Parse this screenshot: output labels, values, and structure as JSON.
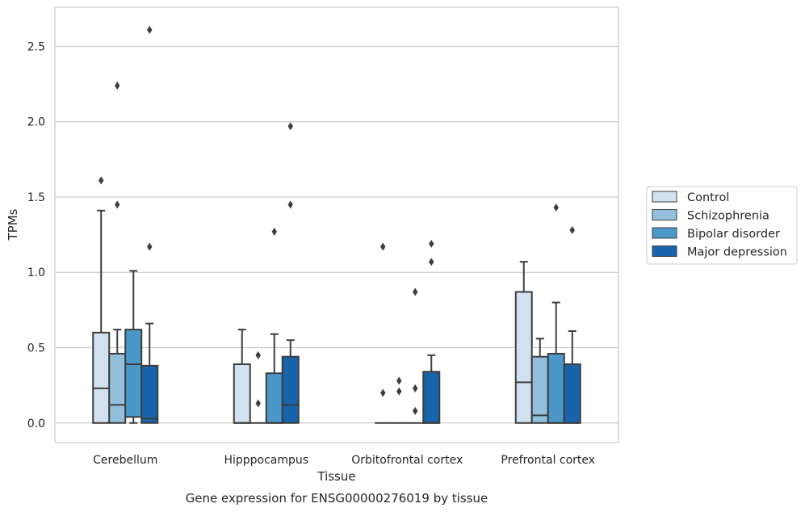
{
  "caption": "Gene expression for ENSG00000276019 by tissue",
  "chart_data": {
    "type": "box",
    "title": "",
    "xlabel": "Tissue",
    "ylabel": "TPMs",
    "ylim": [
      -0.13,
      2.76
    ],
    "yticks": [
      0.0,
      0.5,
      1.0,
      1.5,
      2.0,
      2.5
    ],
    "ytick_labels": [
      "0.0",
      "0.5",
      "1.0",
      "1.5",
      "2.0",
      "2.5"
    ],
    "grid": "horizontal",
    "legend_position": "right",
    "categories": [
      "Cerebellum",
      "Hipppocampus",
      "Orbitofrontal cortex",
      "Prefrontal cortex"
    ],
    "series": [
      {
        "name": "Control",
        "color": "#d1e1ef",
        "boxes": [
          {
            "q1": 0.0,
            "median": 0.23,
            "q3": 0.6,
            "whisker_low": 0.0,
            "whisker_high": 1.41,
            "outliers": [
              1.61
            ]
          },
          {
            "q1": 0.0,
            "median": 0.0,
            "q3": 0.39,
            "whisker_low": 0.0,
            "whisker_high": 0.62,
            "outliers": []
          },
          {
            "q1": 0.0,
            "median": 0.0,
            "q3": 0.0,
            "whisker_low": 0.0,
            "whisker_high": 0.0,
            "outliers": [
              0.2,
              1.17
            ]
          },
          {
            "q1": 0.0,
            "median": 0.27,
            "q3": 0.87,
            "whisker_low": 0.0,
            "whisker_high": 1.07,
            "outliers": []
          }
        ]
      },
      {
        "name": "Schizophrenia",
        "color": "#92bfdb",
        "boxes": [
          {
            "q1": 0.0,
            "median": 0.12,
            "q3": 0.46,
            "whisker_low": 0.0,
            "whisker_high": 0.62,
            "outliers": [
              1.45,
              2.24
            ]
          },
          {
            "q1": 0.0,
            "median": 0.0,
            "q3": 0.0,
            "whisker_low": 0.0,
            "whisker_high": 0.0,
            "outliers": [
              0.13,
              0.45
            ]
          },
          {
            "q1": 0.0,
            "median": 0.0,
            "q3": 0.0,
            "whisker_low": 0.0,
            "whisker_high": 0.0,
            "outliers": [
              0.21,
              0.28
            ]
          },
          {
            "q1": 0.0,
            "median": 0.05,
            "q3": 0.44,
            "whisker_low": 0.0,
            "whisker_high": 0.56,
            "outliers": []
          }
        ]
      },
      {
        "name": "Bipolar disorder",
        "color": "#4a98c9",
        "boxes": [
          {
            "q1": 0.04,
            "median": 0.39,
            "q3": 0.62,
            "whisker_low": 0.0,
            "whisker_high": 1.01,
            "outliers": []
          },
          {
            "q1": 0.0,
            "median": 0.0,
            "q3": 0.33,
            "whisker_low": 0.0,
            "whisker_high": 0.59,
            "outliers": [
              1.27
            ]
          },
          {
            "q1": 0.0,
            "median": 0.0,
            "q3": 0.0,
            "whisker_low": 0.0,
            "whisker_high": 0.0,
            "outliers": [
              0.08,
              0.23,
              0.87
            ]
          },
          {
            "q1": 0.0,
            "median": 0.0,
            "q3": 0.46,
            "whisker_low": 0.0,
            "whisker_high": 0.8,
            "outliers": [
              1.43
            ]
          }
        ]
      },
      {
        "name": "Major depression",
        "color": "#1764ab",
        "boxes": [
          {
            "q1": 0.0,
            "median": 0.03,
            "q3": 0.38,
            "whisker_low": 0.0,
            "whisker_high": 0.66,
            "outliers": [
              1.17,
              2.61
            ]
          },
          {
            "q1": 0.0,
            "median": 0.12,
            "q3": 0.44,
            "whisker_low": 0.0,
            "whisker_high": 0.55,
            "outliers": [
              1.45,
              1.97
            ]
          },
          {
            "q1": 0.0,
            "median": 0.0,
            "q3": 0.34,
            "whisker_low": 0.0,
            "whisker_high": 0.45,
            "outliers": [
              1.07,
              1.19
            ]
          },
          {
            "q1": 0.0,
            "median": 0.0,
            "q3": 0.39,
            "whisker_low": 0.0,
            "whisker_high": 0.61,
            "outliers": [
              1.28
            ]
          }
        ]
      }
    ]
  }
}
